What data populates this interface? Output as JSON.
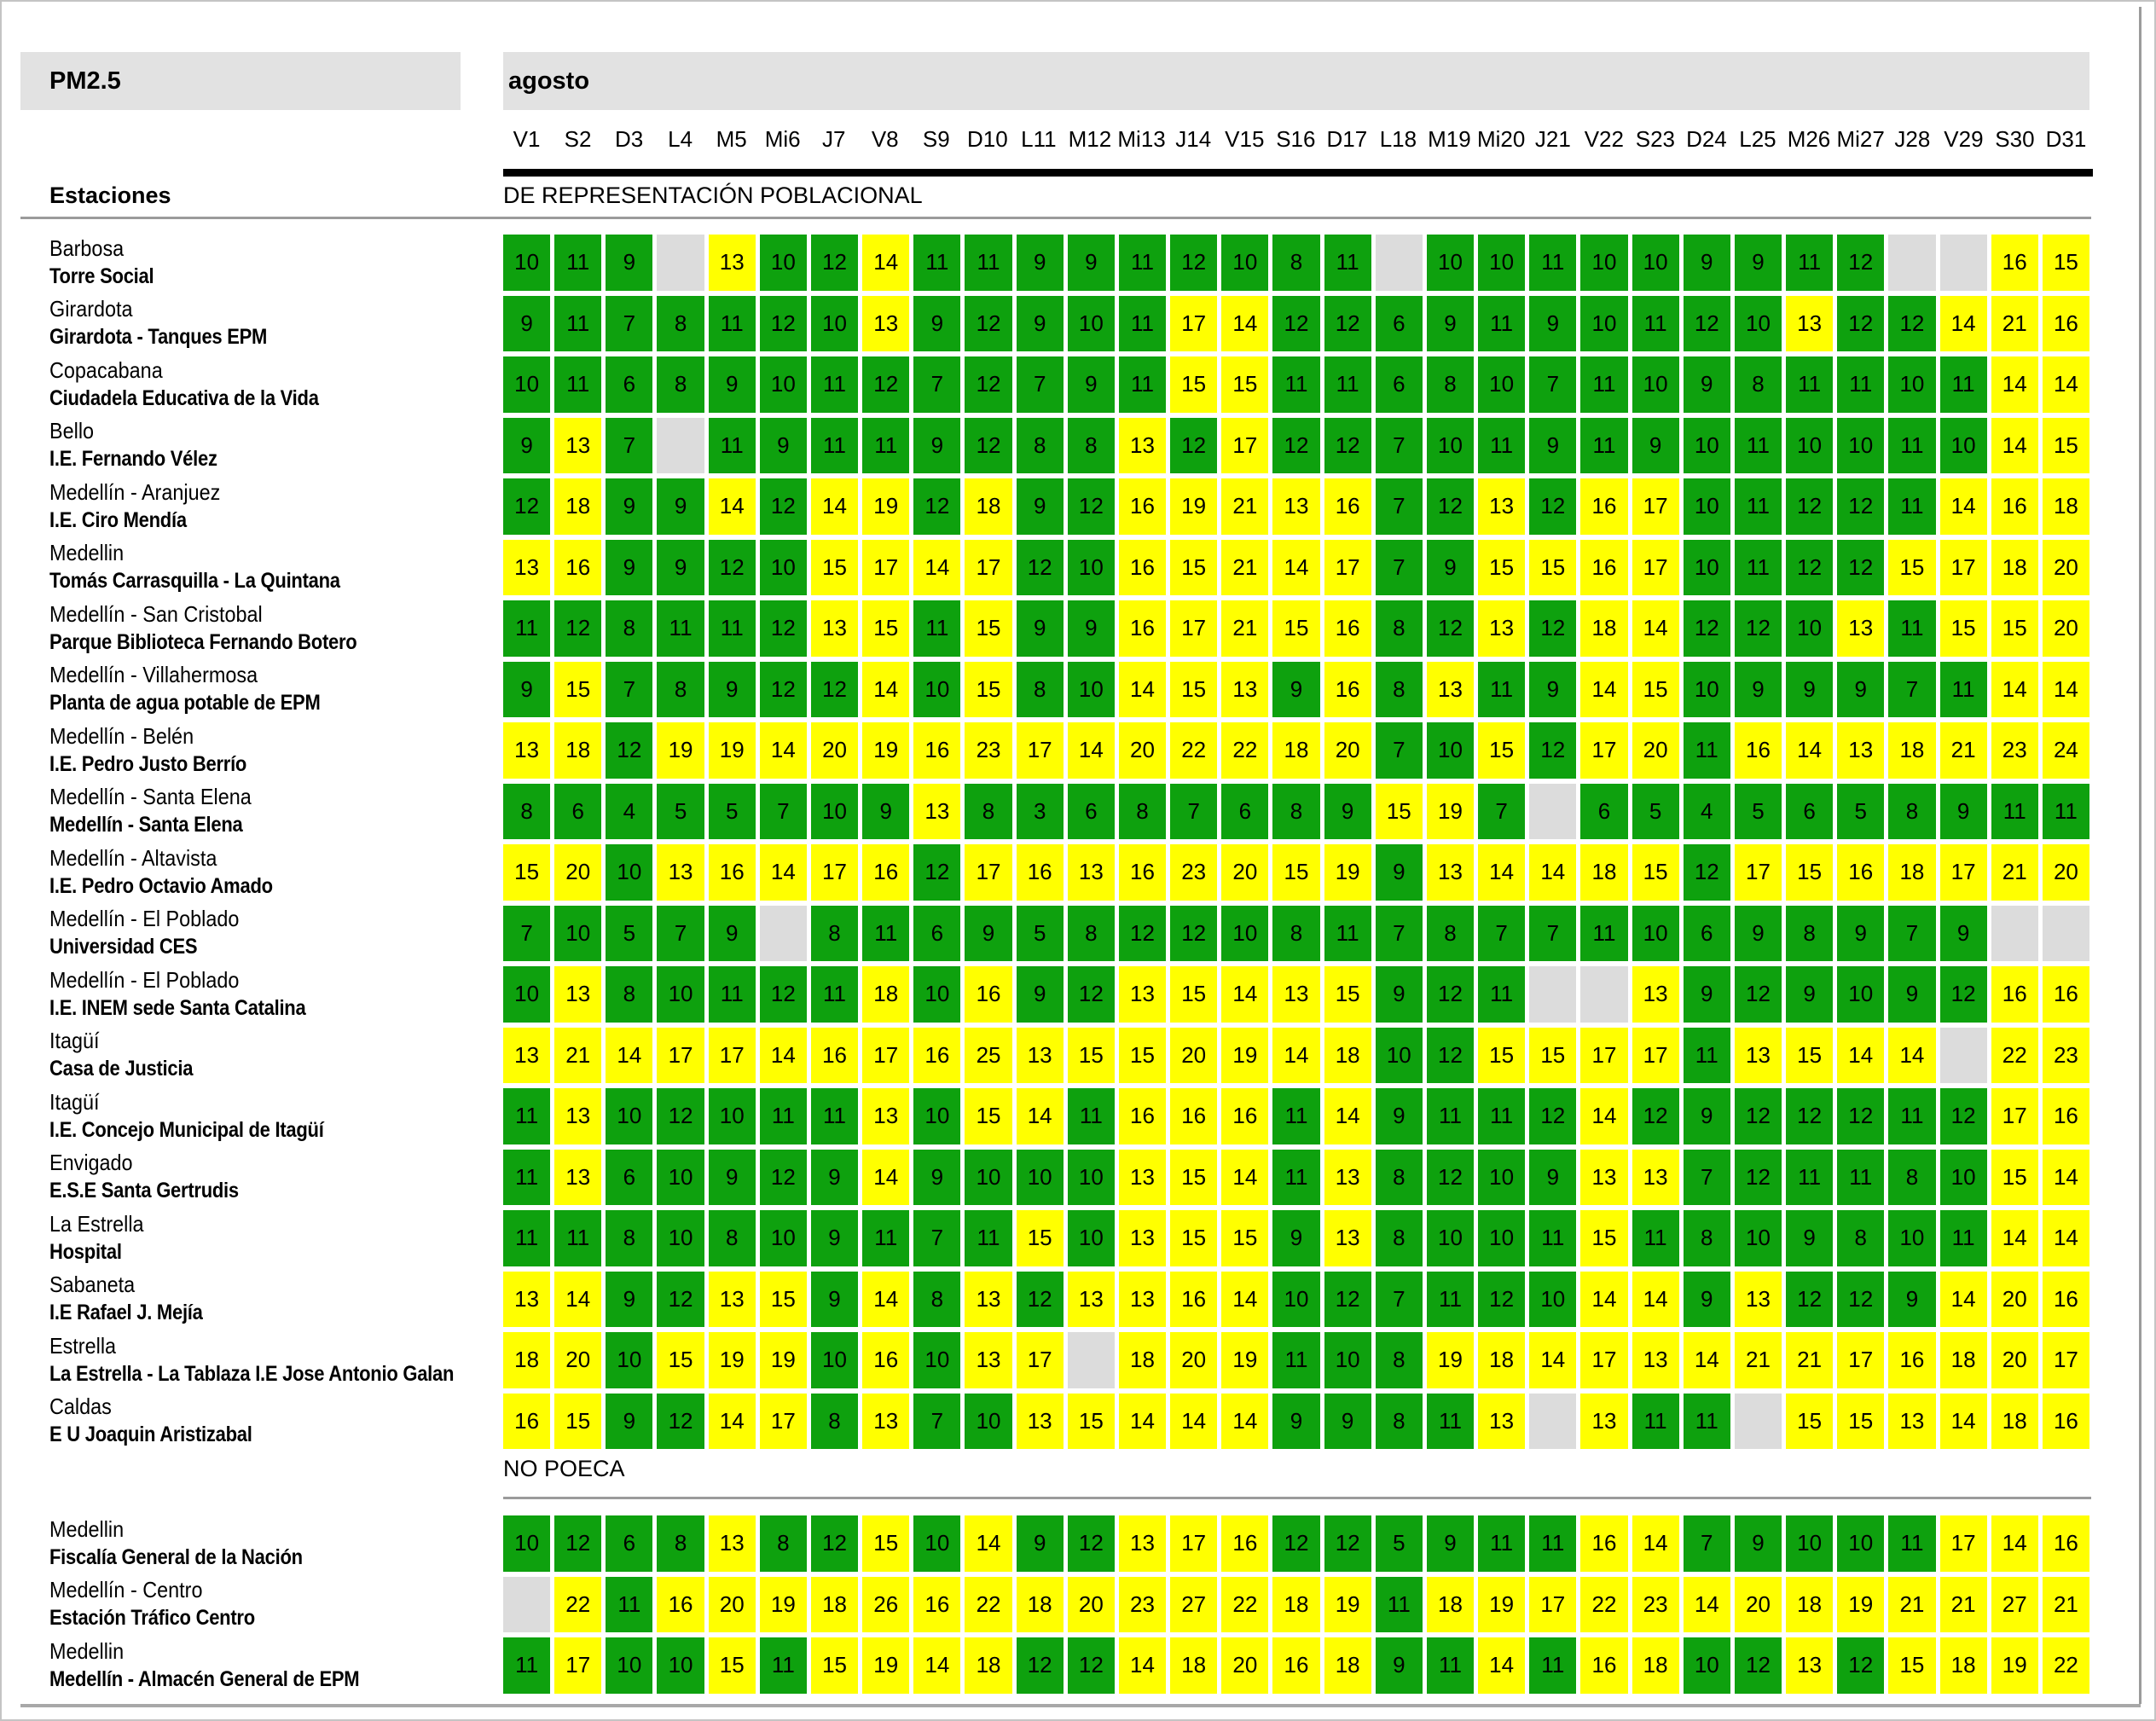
{
  "chart_data": {
    "type": "heatmap",
    "title": "PM2.5",
    "month_label": "agosto",
    "row_header": "Estaciones",
    "columns": [
      "V1",
      "S2",
      "D3",
      "L4",
      "M5",
      "Mi6",
      "J7",
      "V8",
      "S9",
      "D10",
      "L11",
      "M12",
      "Mi13",
      "J14",
      "V15",
      "S16",
      "D17",
      "L18",
      "M19",
      "Mi20",
      "J21",
      "V22",
      "S23",
      "D24",
      "L25",
      "M26",
      "Mi27",
      "J28",
      "V29",
      "S30",
      "D31"
    ],
    "color_rule": {
      "green_max": 12,
      "green": "#0ea10e",
      "yellow": "#ffff00",
      "missing": "#dcdcdc",
      "header_band": "#e2e2e2"
    },
    "sections": [
      {
        "label": "DE REPRESENTACIÓN POBLACIONAL",
        "rows": [
          {
            "location": "Barbosa",
            "name": "Torre Social",
            "values": [
              10,
              11,
              9,
              null,
              13,
              10,
              12,
              14,
              11,
              11,
              9,
              9,
              11,
              12,
              10,
              8,
              11,
              null,
              10,
              10,
              11,
              10,
              10,
              9,
              9,
              11,
              12,
              null,
              null,
              16,
              15
            ]
          },
          {
            "location": "Girardota",
            "name": "Girardota - Tanques EPM",
            "values": [
              9,
              11,
              7,
              8,
              11,
              12,
              10,
              13,
              9,
              12,
              9,
              10,
              11,
              17,
              14,
              12,
              12,
              6,
              9,
              11,
              9,
              10,
              11,
              12,
              10,
              13,
              12,
              12,
              14,
              21,
              16
            ]
          },
          {
            "location": "Copacabana",
            "name": "Ciudadela Educativa de la Vida",
            "values": [
              10,
              11,
              6,
              8,
              9,
              10,
              11,
              12,
              7,
              12,
              7,
              9,
              11,
              15,
              15,
              11,
              11,
              6,
              8,
              10,
              7,
              11,
              10,
              9,
              8,
              11,
              11,
              10,
              11,
              14,
              14
            ]
          },
          {
            "location": "Bello",
            "name": "I.E. Fernando Vélez",
            "values": [
              9,
              13,
              7,
              null,
              11,
              9,
              11,
              11,
              9,
              12,
              8,
              8,
              13,
              12,
              17,
              12,
              12,
              7,
              10,
              11,
              9,
              11,
              9,
              10,
              11,
              10,
              10,
              11,
              10,
              14,
              15
            ]
          },
          {
            "location": "Medellín - Aranjuez",
            "name": "I.E. Ciro Mendía",
            "values": [
              12,
              18,
              9,
              9,
              14,
              12,
              14,
              19,
              12,
              18,
              9,
              12,
              16,
              19,
              21,
              13,
              16,
              7,
              12,
              13,
              12,
              16,
              17,
              10,
              11,
              12,
              12,
              11,
              14,
              16,
              18
            ]
          },
          {
            "location": "Medellin",
            "name": "Tomás Carrasquilla - La Quintana",
            "values": [
              13,
              16,
              9,
              9,
              12,
              10,
              15,
              17,
              14,
              17,
              12,
              10,
              16,
              15,
              21,
              14,
              17,
              7,
              9,
              15,
              15,
              16,
              17,
              10,
              11,
              12,
              12,
              15,
              17,
              18,
              20
            ]
          },
          {
            "location": "Medellín - San Cristobal",
            "name": "Parque Biblioteca Fernando Botero",
            "values": [
              11,
              12,
              8,
              11,
              11,
              12,
              13,
              15,
              11,
              15,
              9,
              9,
              16,
              17,
              21,
              15,
              16,
              8,
              12,
              13,
              12,
              18,
              14,
              12,
              12,
              10,
              13,
              11,
              15,
              15,
              20
            ]
          },
          {
            "location": "Medellín - Villahermosa",
            "name": "Planta de agua potable de EPM",
            "values": [
              9,
              15,
              7,
              8,
              9,
              12,
              12,
              14,
              10,
              15,
              8,
              10,
              14,
              15,
              13,
              9,
              16,
              8,
              13,
              11,
              9,
              14,
              15,
              10,
              9,
              9,
              9,
              7,
              11,
              14,
              14
            ]
          },
          {
            "location": "Medellín - Belén",
            "name": "I.E. Pedro Justo Berrío",
            "values": [
              13,
              18,
              12,
              19,
              19,
              14,
              20,
              19,
              16,
              23,
              17,
              14,
              20,
              22,
              22,
              18,
              20,
              7,
              10,
              15,
              12,
              17,
              20,
              11,
              16,
              14,
              13,
              18,
              21,
              23,
              24
            ]
          },
          {
            "location": "Medellín - Santa Elena",
            "name": "Medellín - Santa Elena",
            "values": [
              8,
              6,
              4,
              5,
              5,
              7,
              10,
              9,
              13,
              8,
              3,
              6,
              8,
              7,
              6,
              8,
              9,
              15,
              19,
              7,
              null,
              6,
              5,
              4,
              5,
              6,
              5,
              8,
              9,
              11,
              11
            ]
          },
          {
            "location": "Medellín - Altavista",
            "name": "I.E. Pedro Octavio Amado",
            "values": [
              15,
              20,
              10,
              13,
              16,
              14,
              17,
              16,
              12,
              17,
              16,
              13,
              16,
              23,
              20,
              15,
              19,
              9,
              13,
              14,
              14,
              18,
              15,
              12,
              17,
              15,
              16,
              18,
              17,
              21,
              20
            ]
          },
          {
            "location": "Medellín - El Poblado",
            "name": "Universidad CES",
            "values": [
              7,
              10,
              5,
              7,
              9,
              null,
              8,
              11,
              6,
              9,
              5,
              8,
              12,
              12,
              10,
              8,
              11,
              7,
              8,
              7,
              7,
              11,
              10,
              6,
              9,
              8,
              9,
              7,
              9,
              null,
              null
            ]
          },
          {
            "location": "Medellín - El Poblado",
            "name": "I.E. INEM sede Santa Catalina",
            "values": [
              10,
              13,
              8,
              10,
              11,
              12,
              11,
              18,
              10,
              16,
              9,
              12,
              13,
              15,
              14,
              13,
              15,
              9,
              12,
              11,
              null,
              null,
              13,
              9,
              12,
              9,
              10,
              9,
              12,
              16,
              16
            ]
          },
          {
            "location": "Itagüí",
            "name": "Casa de Justicia",
            "values": [
              13,
              21,
              14,
              17,
              17,
              14,
              16,
              17,
              16,
              25,
              13,
              15,
              15,
              20,
              19,
              14,
              18,
              10,
              12,
              15,
              15,
              17,
              17,
              11,
              13,
              15,
              14,
              14,
              null,
              22,
              23
            ]
          },
          {
            "location": "Itagüí",
            "name": "I.E. Concejo Municipal de Itagüí",
            "values": [
              11,
              13,
              10,
              12,
              10,
              11,
              11,
              13,
              10,
              15,
              14,
              11,
              16,
              16,
              16,
              11,
              14,
              9,
              11,
              11,
              12,
              14,
              12,
              9,
              12,
              12,
              12,
              11,
              12,
              17,
              16
            ]
          },
          {
            "location": "Envigado",
            "name": "E.S.E Santa Gertrudis",
            "values": [
              11,
              13,
              6,
              10,
              9,
              12,
              9,
              14,
              9,
              10,
              10,
              10,
              13,
              15,
              14,
              11,
              13,
              8,
              12,
              10,
              9,
              13,
              13,
              7,
              12,
              11,
              11,
              8,
              10,
              15,
              14
            ]
          },
          {
            "location": "La Estrella",
            "name": "Hospital",
            "values": [
              11,
              11,
              8,
              10,
              8,
              10,
              9,
              11,
              7,
              11,
              15,
              10,
              13,
              15,
              15,
              9,
              13,
              8,
              10,
              10,
              11,
              15,
              11,
              8,
              10,
              9,
              8,
              10,
              11,
              14,
              14
            ]
          },
          {
            "location": "Sabaneta",
            "name": "I.E Rafael J. Mejía",
            "values": [
              13,
              14,
              9,
              12,
              13,
              15,
              9,
              14,
              8,
              13,
              12,
              13,
              13,
              16,
              14,
              10,
              12,
              7,
              11,
              12,
              10,
              14,
              14,
              9,
              13,
              12,
              12,
              9,
              14,
              20,
              16
            ]
          },
          {
            "location": "Estrella",
            "name": "La Estrella - La Tablaza I.E Jose Antonio Galan",
            "values": [
              18,
              20,
              10,
              15,
              19,
              19,
              10,
              16,
              10,
              13,
              17,
              null,
              18,
              20,
              19,
              11,
              10,
              8,
              19,
              18,
              14,
              17,
              13,
              14,
              21,
              21,
              17,
              16,
              18,
              20,
              17
            ]
          },
          {
            "location": "Caldas",
            "name": "E U Joaquin Aristizabal",
            "values": [
              16,
              15,
              9,
              12,
              14,
              17,
              8,
              13,
              7,
              10,
              13,
              15,
              14,
              14,
              14,
              9,
              9,
              8,
              11,
              13,
              null,
              13,
              11,
              11,
              null,
              15,
              15,
              13,
              14,
              18,
              16
            ]
          }
        ]
      },
      {
        "label": "NO POECA",
        "rows": [
          {
            "location": "Medellin",
            "name": "Fiscalía General de la Nación",
            "values": [
              10,
              12,
              6,
              8,
              13,
              8,
              12,
              15,
              10,
              14,
              9,
              12,
              13,
              17,
              16,
              12,
              12,
              5,
              9,
              11,
              11,
              16,
              14,
              7,
              9,
              10,
              10,
              11,
              17,
              14,
              16
            ]
          },
          {
            "location": "Medellín - Centro",
            "name": "Estación Tráfico Centro",
            "values": [
              null,
              22,
              11,
              16,
              20,
              19,
              18,
              26,
              16,
              22,
              18,
              20,
              23,
              27,
              22,
              18,
              19,
              11,
              18,
              19,
              17,
              22,
              23,
              14,
              20,
              18,
              19,
              21,
              21,
              27,
              21
            ]
          },
          {
            "location": "Medellin",
            "name": "Medellín - Almacén General de EPM",
            "values": [
              11,
              17,
              10,
              10,
              15,
              11,
              15,
              19,
              14,
              18,
              12,
              12,
              14,
              18,
              20,
              16,
              18,
              9,
              11,
              14,
              11,
              16,
              18,
              10,
              12,
              13,
              12,
              15,
              18,
              19,
              22
            ]
          }
        ]
      }
    ]
  }
}
